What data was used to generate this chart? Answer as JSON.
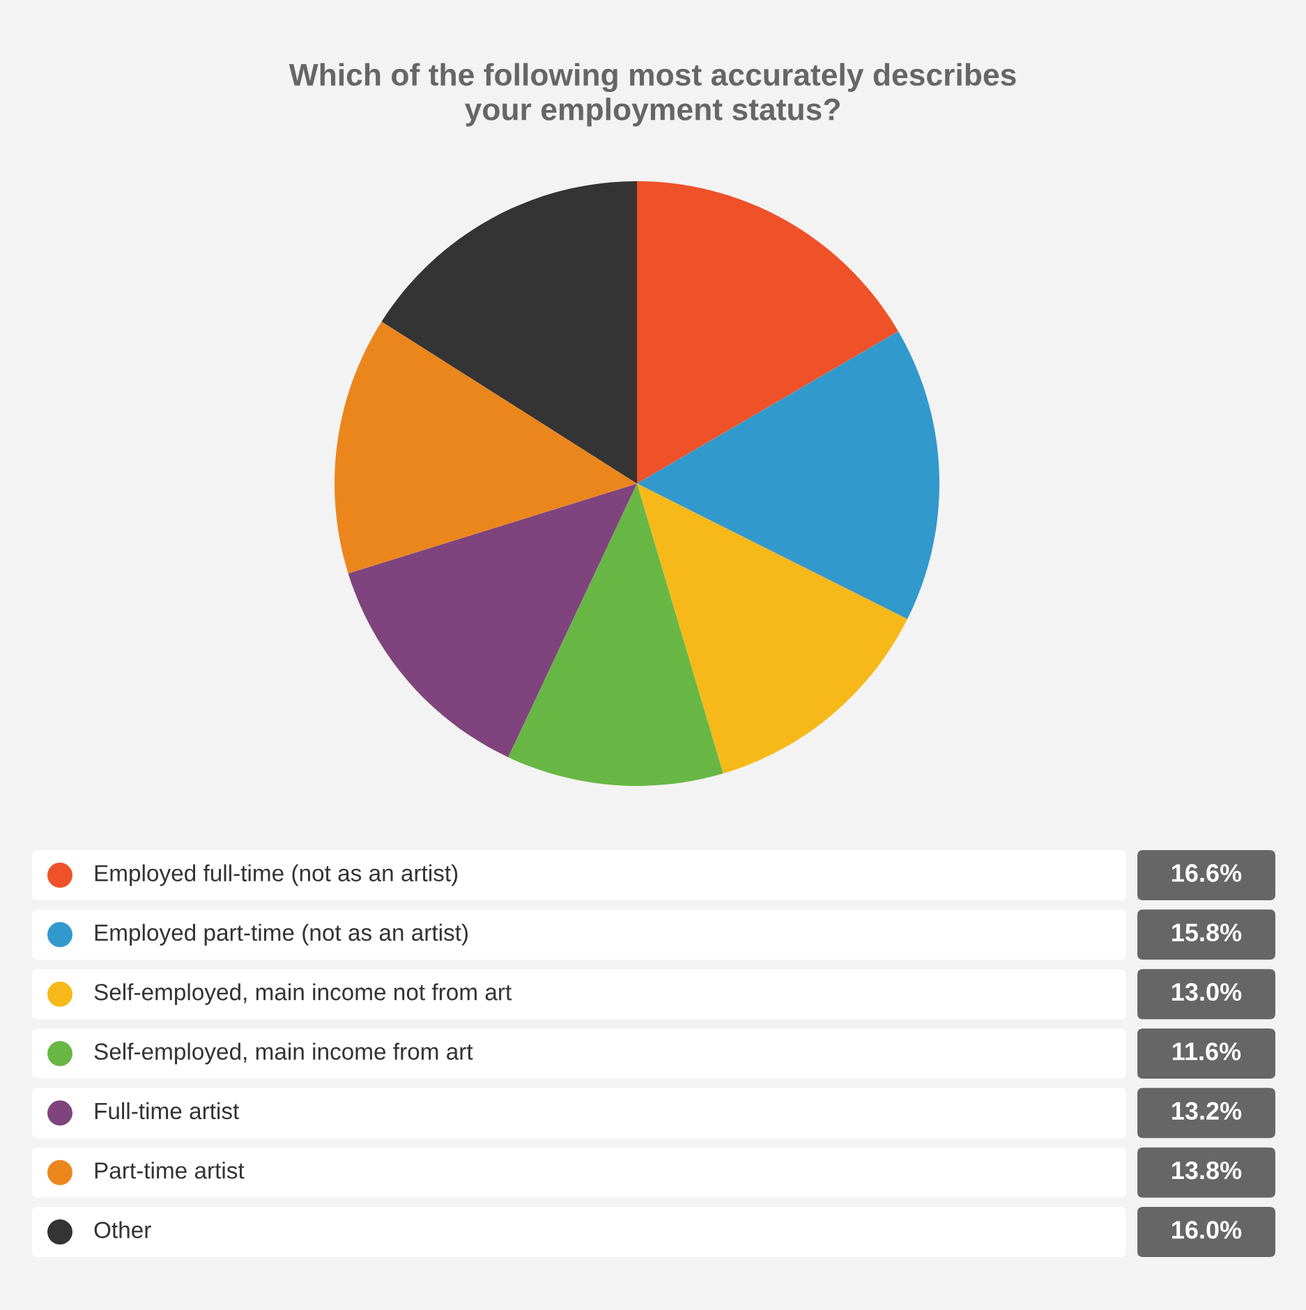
{
  "chart_data": {
    "type": "pie",
    "title": "Which of the following most accurately describes\nyour employment status?",
    "categories": [
      "Employed full-time (not as an artist)",
      "Employed part-time (not as an artist)",
      "Self-employed, main income not from art",
      "Self-employed, main income from art",
      "Full-time artist",
      "Part-time artist",
      "Other"
    ],
    "values": [
      16.6,
      15.8,
      13.0,
      11.6,
      13.2,
      13.8,
      16.0
    ],
    "colors": [
      "#ef5128",
      "#3299cc",
      "#f6b919",
      "#68b744",
      "#7f447d",
      "#eb861d",
      "#343434"
    ],
    "value_labels": [
      "16.6%",
      "15.8%",
      "13.0%",
      "11.6%",
      "13.2%",
      "13.8%",
      "16.0%"
    ],
    "legend": "bottom"
  }
}
